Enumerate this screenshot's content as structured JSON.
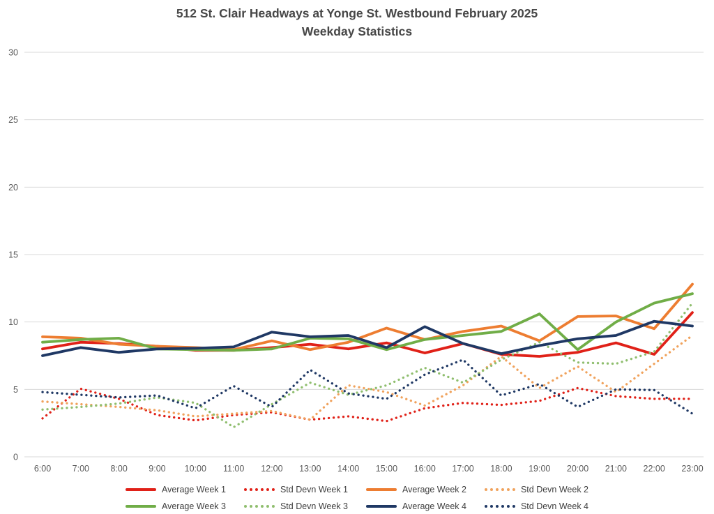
{
  "title": {
    "line1": "512 St. Clair Headways at Yonge St. Westbound February 2025",
    "line2": "Weekday Statistics"
  },
  "colors": {
    "grid": "#d9d9d9",
    "axis_text": "#595959",
    "week1": "#e02118",
    "week2": "#ed7d31",
    "week2_sd": "#f0a25c",
    "week3": "#70ad47",
    "week3_sd": "#8fbe6e",
    "week4": "#1f3864"
  },
  "chart_data": {
    "type": "line",
    "title": "512 St. Clair Headways at Yonge St. Westbound February 2025 Weekday Statistics",
    "xlabel": "",
    "ylabel": "",
    "x_labels": [
      "6:00",
      "7:00",
      "8:00",
      "9:00",
      "10:00",
      "11:00",
      "12:00",
      "13:00",
      "14:00",
      "15:00",
      "16:00",
      "17:00",
      "18:00",
      "19:00",
      "20:00",
      "21:00",
      "22:00",
      "23:00"
    ],
    "ylim": [
      0,
      30
    ],
    "y_ticks": [
      0,
      5,
      10,
      15,
      20,
      25,
      30
    ],
    "grid": true,
    "legend_position": "bottom",
    "series": [
      {
        "name": "Average Week 1",
        "style": "solid",
        "color": "#e02118",
        "values": [
          8.0,
          8.5,
          8.4,
          8.2,
          7.9,
          7.9,
          8.1,
          8.35,
          8.0,
          8.45,
          7.7,
          8.4,
          7.6,
          7.45,
          7.75,
          8.45,
          7.6,
          10.7
        ]
      },
      {
        "name": "Std Devn Week 1",
        "style": "dotted",
        "color": "#e02118",
        "values": [
          2.85,
          5.05,
          4.3,
          3.1,
          2.7,
          3.1,
          3.3,
          2.75,
          3.0,
          2.65,
          3.6,
          4.0,
          3.85,
          4.15,
          5.1,
          4.5,
          4.3,
          4.3
        ]
      },
      {
        "name": "Average Week 2",
        "style": "solid",
        "color": "#ed7d31",
        "values": [
          8.9,
          8.8,
          8.35,
          8.2,
          8.1,
          7.95,
          8.6,
          7.95,
          8.5,
          9.55,
          8.7,
          9.3,
          9.7,
          8.6,
          10.4,
          10.45,
          9.5,
          12.8
        ]
      },
      {
        "name": "Std Devn Week 2",
        "style": "dotted",
        "color": "#f0a25c",
        "values": [
          4.1,
          3.9,
          3.7,
          3.45,
          3.0,
          3.2,
          3.4,
          2.75,
          5.3,
          4.8,
          3.8,
          5.3,
          7.45,
          5.1,
          6.7,
          4.8,
          6.9,
          9.0
        ]
      },
      {
        "name": "Average Week 3",
        "style": "solid",
        "color": "#70ad47",
        "values": [
          8.5,
          8.7,
          8.8,
          8.0,
          7.95,
          7.9,
          8.0,
          8.8,
          8.75,
          7.95,
          8.7,
          9.0,
          9.3,
          10.6,
          7.95,
          10.0,
          11.4,
          12.1
        ]
      },
      {
        "name": "Std Devn Week 3",
        "style": "dotted",
        "color": "#8fbe6e",
        "values": [
          3.5,
          3.7,
          3.95,
          4.4,
          4.0,
          2.2,
          3.9,
          5.5,
          4.6,
          5.3,
          6.6,
          5.5,
          7.2,
          8.5,
          7.0,
          6.9,
          7.8,
          11.4
        ]
      },
      {
        "name": "Average Week 4",
        "style": "solid",
        "color": "#1f3864",
        "values": [
          7.5,
          8.1,
          7.75,
          8.0,
          8.05,
          8.15,
          9.25,
          8.9,
          9.0,
          8.1,
          9.65,
          8.4,
          7.65,
          8.25,
          8.75,
          9.0,
          10.05,
          9.7
        ]
      },
      {
        "name": "Std Devn Week 4",
        "style": "dotted",
        "color": "#1f3864",
        "values": [
          4.8,
          4.6,
          4.4,
          4.55,
          3.6,
          5.25,
          3.7,
          6.45,
          4.7,
          4.3,
          6.1,
          7.2,
          4.55,
          5.4,
          3.7,
          5.0,
          4.95,
          3.2
        ]
      }
    ]
  },
  "legend": {
    "rows": [
      [
        0,
        1,
        2,
        3
      ],
      [
        4,
        5,
        6,
        7
      ]
    ]
  }
}
